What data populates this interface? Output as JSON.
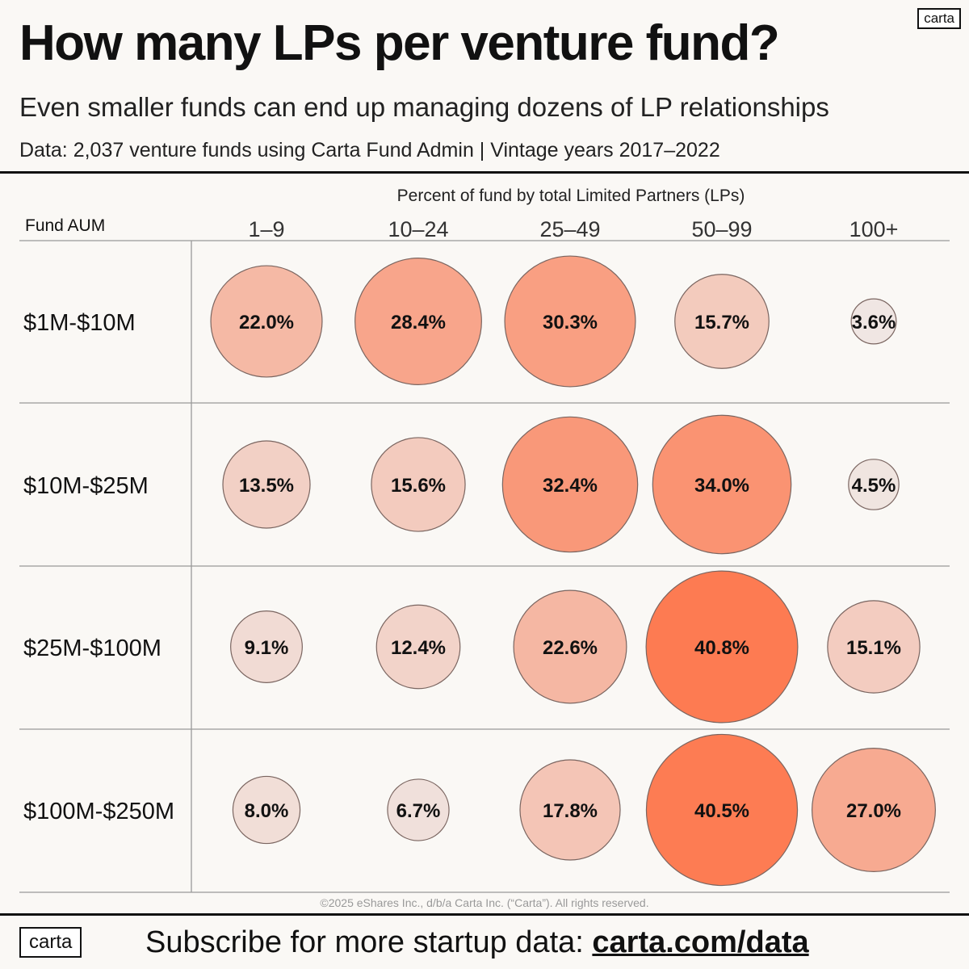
{
  "header": {
    "title": "How many LPs per venture fund?",
    "subtitle": "Even smaller funds can end up managing dozens of LP relationships",
    "source": "Data: 2,037 venture funds using Carta Fund Admin | Vintage years 2017–2022",
    "logo": "carta"
  },
  "chart_data": {
    "type": "bubble-table",
    "xlabel": "Percent of fund by total Limited Partners (LPs)",
    "ylabel": "Fund AUM",
    "columns": [
      "1–9",
      "10–24",
      "25–49",
      "50–99",
      "100+"
    ],
    "rows": [
      {
        "label": "$1M-$10M",
        "values": [
          22.0,
          28.4,
          30.3,
          15.7,
          3.6
        ]
      },
      {
        "label": "$10M-$25M",
        "values": [
          13.5,
          15.6,
          32.4,
          34.0,
          4.5
        ]
      },
      {
        "label": "$25M-$100M",
        "values": [
          9.1,
          12.4,
          22.6,
          40.8,
          15.1
        ]
      },
      {
        "label": "$100M-$250M",
        "values": [
          8.0,
          6.7,
          17.8,
          40.5,
          27.0
        ]
      }
    ],
    "unit": "%",
    "color_low": "#efebe9",
    "color_high": "#fd7b52"
  },
  "footer": {
    "copyright": "©2025 eShares Inc., d/b/a Carta Inc. (“Carta”). All rights reserved.",
    "cta": "Subscribe for more startup data:",
    "link": "carta.com/data",
    "logo": "carta"
  }
}
